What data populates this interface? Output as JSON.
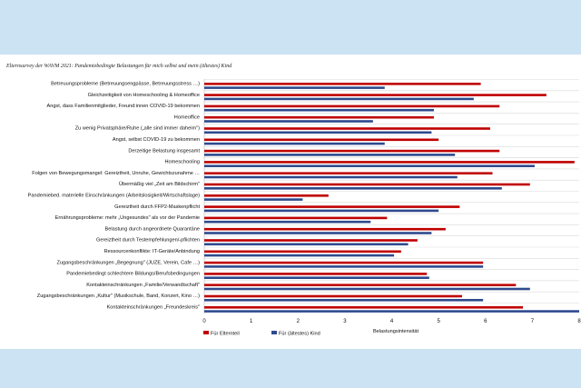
{
  "caption": "Elternsurvey der WAVM 2021: Pandemiebedingte Belastungen für mich selbst und mein (ältestes) Kind",
  "chart_data": {
    "type": "bar",
    "orientation": "horizontal",
    "categories": [
      "Betreuungsprobleme (Betreuungsengpässe, Betreuungsstress …)",
      "Gleichzeitigkeit von Homeschooling & Homeoffice",
      "Angst, dass Familienmitglieder, Freund:innen COVID-19 bekommen",
      "Homeoffice",
      "Zu wenig Privatsphäre/Ruhe („alle sind immer daheim\")",
      "Angst, selbst COVID-19 zu bekommen",
      "Derzeitige Belastung insgesamt",
      "Homeschooling",
      "Folgen von Bewegungsmangel: Gereiztheit, Unruhe, Gewichtszunahme …",
      "Übermäßig viel „Zeit am Bildschirm\"",
      "Pandemiebed. materielle Einschränkungen (Arbeitslosigkeit/Wirtschaftslage)",
      "Gereiztheit durch FFP2-Maskenpflicht",
      "Ernährungsprobleme: mehr „Ungesundes\" als vor der Pandemie",
      "Belastung durch angeordnete Quarantäne",
      "Gereiztheit durch Testempfehlungen/-pflichten",
      "Ressourcenkonflikte: IT-Geräte/Anbindung",
      "Zugangsbeschränkungen „Begegnung\" (JUZE, Verein, Cafe …)",
      "Pandemiebedingt schlechtere Bildungs/Berufsbedingungen",
      "Kontakteinschränkungen „Familie/Verwandtschaft\"",
      "Zugangsbeschränkungen „Kultur\" (Musikschule, Band, Konzert, Kino …)",
      "Kontakteinschränkungen „Freundeskreis\""
    ],
    "series": [
      {
        "name": "Für Elternteil",
        "color": "#c00000",
        "values": [
          5.9,
          7.3,
          6.3,
          4.9,
          6.1,
          5.0,
          6.3,
          7.9,
          6.15,
          6.95,
          2.65,
          5.45,
          3.9,
          5.15,
          4.55,
          4.2,
          5.95,
          4.75,
          6.65,
          5.5,
          6.8
        ]
      },
      {
        "name": "Für (ältestes) Kind",
        "color": "#2e4a8e",
        "values": [
          3.85,
          5.75,
          4.9,
          3.6,
          4.85,
          3.85,
          5.35,
          7.05,
          5.4,
          6.35,
          2.1,
          5.0,
          3.55,
          4.85,
          4.35,
          4.05,
          5.95,
          4.8,
          6.95,
          5.95,
          8.0
        ]
      }
    ],
    "xlabel": "Belastungsintensität",
    "xlim": [
      0,
      8
    ],
    "xticks": [
      "0",
      "1",
      "2",
      "3",
      "4",
      "5",
      "6",
      "7",
      "8"
    ],
    "grid": true,
    "legend_position": "bottom"
  }
}
